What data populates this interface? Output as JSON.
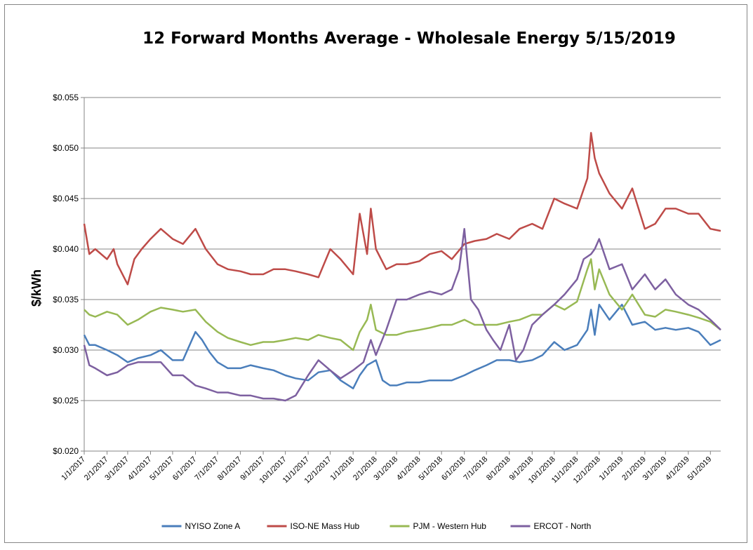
{
  "chart_data": {
    "type": "line",
    "title": "12 Forward Months Average - Wholesale Energy 5/15/2019",
    "xlabel": "",
    "ylabel": "$/kWh",
    "ylim": [
      0.02,
      0.055
    ],
    "y_ticks": [
      "$0.020",
      "$0.025",
      "$0.030",
      "$0.035",
      "$0.040",
      "$0.045",
      "$0.050",
      "$0.055"
    ],
    "y_tick_values": [
      0.02,
      0.025,
      0.03,
      0.035,
      0.04,
      0.045,
      0.05,
      0.055
    ],
    "x_tick_labels": [
      "1/1/2017",
      "2/1/2017",
      "3/1/2017",
      "4/1/2017",
      "5/1/2017",
      "6/1/2017",
      "7/1/2017",
      "8/1/2017",
      "9/1/2017",
      "10/1/2017",
      "11/1/2017",
      "12/1/2017",
      "1/1/2018",
      "2/1/2018",
      "3/1/2018",
      "4/1/2018",
      "5/1/2018",
      "6/1/2018",
      "7/1/2018",
      "8/1/2018",
      "9/1/2018",
      "10/1/2018",
      "11/1/2018",
      "12/1/2018",
      "1/1/2019",
      "2/1/2019",
      "3/1/2019",
      "4/1/2019",
      "5/1/2019"
    ],
    "x_range": [
      "1/1/2017",
      "5/15/2019"
    ],
    "grid": true,
    "legend_position": "bottom",
    "series": [
      {
        "name": "NYISO Zone A",
        "color": "#4a7ebb",
        "x": [
          "1/1/2017",
          "1/8/2017",
          "1/16/2017",
          "2/1/2017",
          "2/15/2017",
          "3/1/2017",
          "3/15/2017",
          "4/1/2017",
          "4/15/2017",
          "5/1/2017",
          "5/15/2017",
          "6/1/2017",
          "6/10/2017",
          "6/20/2017",
          "7/1/2017",
          "7/15/2017",
          "8/1/2017",
          "8/15/2017",
          "9/1/2017",
          "9/15/2017",
          "10/1/2017",
          "10/15/2017",
          "11/1/2017",
          "11/15/2017",
          "12/1/2017",
          "12/15/2017",
          "1/1/2018",
          "1/10/2018",
          "1/20/2018",
          "2/1/2018",
          "2/10/2018",
          "2/20/2018",
          "3/1/2018",
          "3/15/2018",
          "4/1/2018",
          "4/15/2018",
          "5/1/2018",
          "5/15/2018",
          "6/1/2018",
          "6/15/2018",
          "7/1/2018",
          "7/15/2018",
          "8/1/2018",
          "8/15/2018",
          "9/1/2018",
          "9/15/2018",
          "10/1/2018",
          "10/15/2018",
          "11/1/2018",
          "11/15/2018",
          "11/20/2018",
          "11/25/2018",
          "12/1/2018",
          "12/15/2018",
          "1/1/2019",
          "1/15/2019",
          "2/1/2019",
          "2/15/2019",
          "3/1/2019",
          "3/15/2019",
          "4/1/2019",
          "4/15/2019",
          "5/1/2019",
          "5/15/2019"
        ],
        "y": [
          0.0315,
          0.0305,
          0.0305,
          0.03,
          0.0295,
          0.0288,
          0.0292,
          0.0295,
          0.03,
          0.029,
          0.029,
          0.0318,
          0.031,
          0.0298,
          0.0288,
          0.0282,
          0.0282,
          0.0285,
          0.0282,
          0.028,
          0.0275,
          0.0272,
          0.027,
          0.0278,
          0.028,
          0.027,
          0.0262,
          0.0275,
          0.0285,
          0.029,
          0.027,
          0.0265,
          0.0265,
          0.0268,
          0.0268,
          0.027,
          0.027,
          0.027,
          0.0275,
          0.028,
          0.0285,
          0.029,
          0.029,
          0.0288,
          0.029,
          0.0295,
          0.0308,
          0.03,
          0.0305,
          0.032,
          0.034,
          0.0315,
          0.0345,
          0.033,
          0.0345,
          0.0325,
          0.0328,
          0.032,
          0.0322,
          0.032,
          0.0322,
          0.0318,
          0.0305,
          0.031
        ]
      },
      {
        "name": "ISO-NE Mass Hub",
        "color": "#be4b48",
        "x": [
          "1/1/2017",
          "1/8/2017",
          "1/16/2017",
          "2/1/2017",
          "2/10/2017",
          "2/15/2017",
          "3/1/2017",
          "3/10/2017",
          "3/20/2017",
          "4/1/2017",
          "4/15/2017",
          "5/1/2017",
          "5/15/2017",
          "6/1/2017",
          "6/15/2017",
          "7/1/2017",
          "7/15/2017",
          "8/1/2017",
          "8/15/2017",
          "9/1/2017",
          "9/15/2017",
          "10/1/2017",
          "10/15/2017",
          "11/1/2017",
          "11/15/2017",
          "12/1/2017",
          "12/15/2017",
          "1/1/2018",
          "1/10/2018",
          "1/20/2018",
          "1/25/2018",
          "2/1/2018",
          "2/15/2018",
          "3/1/2018",
          "3/15/2018",
          "4/1/2018",
          "4/15/2018",
          "5/1/2018",
          "5/15/2018",
          "6/1/2018",
          "6/15/2018",
          "7/1/2018",
          "7/15/2018",
          "8/1/2018",
          "8/15/2018",
          "9/1/2018",
          "9/15/2018",
          "10/1/2018",
          "10/15/2018",
          "11/1/2018",
          "11/15/2018",
          "11/20/2018",
          "11/25/2018",
          "12/1/2018",
          "12/15/2018",
          "1/1/2019",
          "1/15/2019",
          "2/1/2019",
          "2/15/2019",
          "3/1/2019",
          "3/15/2019",
          "4/1/2019",
          "4/15/2019",
          "5/1/2019",
          "5/15/2019"
        ],
        "y": [
          0.0425,
          0.0395,
          0.04,
          0.039,
          0.04,
          0.0385,
          0.0365,
          0.039,
          0.04,
          0.041,
          0.042,
          0.041,
          0.0405,
          0.042,
          0.04,
          0.0385,
          0.038,
          0.0378,
          0.0375,
          0.0375,
          0.038,
          0.038,
          0.0378,
          0.0375,
          0.0372,
          0.04,
          0.039,
          0.0375,
          0.0435,
          0.0395,
          0.044,
          0.04,
          0.038,
          0.0385,
          0.0385,
          0.0388,
          0.0395,
          0.0398,
          0.039,
          0.0405,
          0.0408,
          0.041,
          0.0415,
          0.041,
          0.042,
          0.0425,
          0.042,
          0.045,
          0.0445,
          0.044,
          0.047,
          0.0515,
          0.049,
          0.0475,
          0.0455,
          0.044,
          0.046,
          0.042,
          0.0425,
          0.044,
          0.044,
          0.0435,
          0.0435,
          0.042,
          0.0418
        ]
      },
      {
        "name": "PJM - Western Hub",
        "color": "#98b954",
        "x": [
          "1/1/2017",
          "1/8/2017",
          "1/16/2017",
          "2/1/2017",
          "2/15/2017",
          "3/1/2017",
          "3/15/2017",
          "4/1/2017",
          "4/15/2017",
          "5/1/2017",
          "5/15/2017",
          "6/1/2017",
          "6/15/2017",
          "7/1/2017",
          "7/15/2017",
          "8/1/2017",
          "8/15/2017",
          "9/1/2017",
          "9/15/2017",
          "10/1/2017",
          "10/15/2017",
          "11/1/2017",
          "11/15/2017",
          "12/1/2017",
          "12/15/2017",
          "1/1/2018",
          "1/10/2018",
          "1/20/2018",
          "1/25/2018",
          "2/1/2018",
          "2/15/2018",
          "3/1/2018",
          "3/15/2018",
          "4/1/2018",
          "4/15/2018",
          "5/1/2018",
          "5/15/2018",
          "6/1/2018",
          "6/15/2018",
          "7/1/2018",
          "7/15/2018",
          "8/1/2018",
          "8/15/2018",
          "9/1/2018",
          "9/15/2018",
          "10/1/2018",
          "10/15/2018",
          "11/1/2018",
          "11/15/2018",
          "11/20/2018",
          "11/25/2018",
          "12/1/2018",
          "12/15/2018",
          "1/1/2019",
          "1/15/2019",
          "2/1/2019",
          "2/15/2019",
          "3/1/2019",
          "3/15/2019",
          "4/1/2019",
          "4/15/2019",
          "5/1/2019",
          "5/15/2019"
        ],
        "y": [
          0.034,
          0.0335,
          0.0333,
          0.0338,
          0.0335,
          0.0325,
          0.033,
          0.0338,
          0.0342,
          0.034,
          0.0338,
          0.034,
          0.0328,
          0.0318,
          0.0312,
          0.0308,
          0.0305,
          0.0308,
          0.0308,
          0.031,
          0.0312,
          0.031,
          0.0315,
          0.0312,
          0.031,
          0.03,
          0.0318,
          0.033,
          0.0345,
          0.032,
          0.0315,
          0.0315,
          0.0318,
          0.032,
          0.0322,
          0.0325,
          0.0325,
          0.033,
          0.0325,
          0.0325,
          0.0325,
          0.0328,
          0.033,
          0.0335,
          0.0335,
          0.0345,
          0.034,
          0.0348,
          0.038,
          0.039,
          0.036,
          0.038,
          0.0355,
          0.034,
          0.0355,
          0.0335,
          0.0333,
          0.034,
          0.0338,
          0.0335,
          0.0332,
          0.0328,
          0.032
        ]
      },
      {
        "name": "ERCOT - North",
        "color": "#7d60a0",
        "x": [
          "1/1/2017",
          "1/8/2017",
          "1/16/2017",
          "2/1/2017",
          "2/15/2017",
          "3/1/2017",
          "3/15/2017",
          "4/1/2017",
          "4/15/2017",
          "5/1/2017",
          "5/15/2017",
          "6/1/2017",
          "6/15/2017",
          "7/1/2017",
          "7/15/2017",
          "8/1/2017",
          "8/15/2017",
          "9/1/2017",
          "9/15/2017",
          "10/1/2017",
          "10/15/2017",
          "11/1/2017",
          "11/15/2017",
          "12/1/2017",
          "12/15/2017",
          "1/1/2018",
          "1/15/2018",
          "1/25/2018",
          "2/1/2018",
          "2/15/2018",
          "3/1/2018",
          "3/15/2018",
          "4/1/2018",
          "4/15/2018",
          "5/1/2018",
          "5/15/2018",
          "5/25/2018",
          "6/1/2018",
          "6/10/2018",
          "6/20/2018",
          "7/1/2018",
          "7/10/2018",
          "7/20/2018",
          "8/1/2018",
          "8/10/2018",
          "8/20/2018",
          "9/1/2018",
          "9/15/2018",
          "10/1/2018",
          "10/15/2018",
          "11/1/2018",
          "11/10/2018",
          "11/20/2018",
          "11/25/2018",
          "12/1/2018",
          "12/15/2018",
          "1/1/2019",
          "1/15/2019",
          "2/1/2019",
          "2/15/2019",
          "3/1/2019",
          "3/15/2019",
          "4/1/2019",
          "4/15/2019",
          "5/1/2019",
          "5/15/2019"
        ],
        "y": [
          0.0305,
          0.0285,
          0.0282,
          0.0275,
          0.0278,
          0.0285,
          0.0288,
          0.0288,
          0.0288,
          0.0275,
          0.0275,
          0.0265,
          0.0262,
          0.0258,
          0.0258,
          0.0255,
          0.0255,
          0.0252,
          0.0252,
          0.025,
          0.0255,
          0.0275,
          0.029,
          0.028,
          0.0272,
          0.028,
          0.0288,
          0.031,
          0.0295,
          0.032,
          0.035,
          0.035,
          0.0355,
          0.0358,
          0.0355,
          0.036,
          0.038,
          0.042,
          0.035,
          0.034,
          0.032,
          0.031,
          0.03,
          0.0325,
          0.029,
          0.03,
          0.0325,
          0.0335,
          0.0345,
          0.0355,
          0.037,
          0.039,
          0.0395,
          0.04,
          0.041,
          0.038,
          0.0385,
          0.036,
          0.0375,
          0.036,
          0.037,
          0.0355,
          0.0345,
          0.034,
          0.033,
          0.032
        ]
      }
    ]
  }
}
